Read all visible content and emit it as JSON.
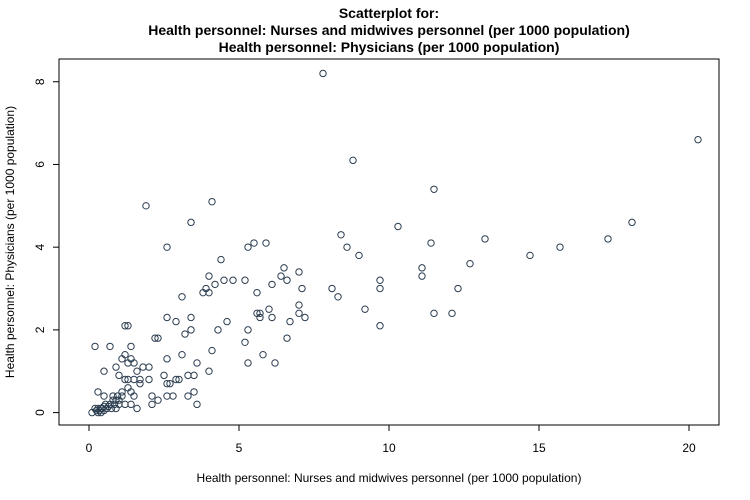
{
  "chart_data": {
    "type": "scatter",
    "title": "Scatterplot for:",
    "subtitle_lines": [
      "Health personnel: Nurses and midwives personnel (per 1000 population)",
      "Health personnel: Physicians (per 1000 population)"
    ],
    "xlabel": "Health personnel: Nurses and midwives personnel (per 1000 population)",
    "ylabel": "Health personnel: Physicians (per 1000 population)",
    "xlim": [
      -1,
      21
    ],
    "ylim": [
      -0.3,
      8.55
    ],
    "xticks": [
      0,
      5,
      10,
      15,
      20
    ],
    "yticks": [
      0,
      2,
      4,
      6,
      8
    ],
    "grid": false,
    "point_color": "#2c3e50",
    "points": [
      [
        0.1,
        0.0
      ],
      [
        0.2,
        0.1
      ],
      [
        0.25,
        0.05
      ],
      [
        0.3,
        0.0
      ],
      [
        0.3,
        0.1
      ],
      [
        0.35,
        0.05
      ],
      [
        0.4,
        0.1
      ],
      [
        0.4,
        0.0
      ],
      [
        0.45,
        0.1
      ],
      [
        0.5,
        0.15
      ],
      [
        0.5,
        0.05
      ],
      [
        0.55,
        0.2
      ],
      [
        0.6,
        0.1
      ],
      [
        0.65,
        0.15
      ],
      [
        0.7,
        0.2
      ],
      [
        0.75,
        0.1
      ],
      [
        0.8,
        0.3
      ],
      [
        0.85,
        0.2
      ],
      [
        0.9,
        0.1
      ],
      [
        0.95,
        0.4
      ],
      [
        1.0,
        0.2
      ],
      [
        1.0,
        0.3
      ],
      [
        0.5,
        0.4
      ],
      [
        0.3,
        0.5
      ],
      [
        0.8,
        0.4
      ],
      [
        0.9,
        0.3
      ],
      [
        1.1,
        0.5
      ],
      [
        0.2,
        1.6
      ],
      [
        0.5,
        1.0
      ],
      [
        0.7,
        1.6
      ],
      [
        0.9,
        1.1
      ],
      [
        1.0,
        0.9
      ],
      [
        1.1,
        1.3
      ],
      [
        1.2,
        1.4
      ],
      [
        1.2,
        2.1
      ],
      [
        1.3,
        2.1
      ],
      [
        1.3,
        1.2
      ],
      [
        1.4,
        1.6
      ],
      [
        1.4,
        1.3
      ],
      [
        1.5,
        1.2
      ],
      [
        1.6,
        1.0
      ],
      [
        1.7,
        0.8
      ],
      [
        1.7,
        0.7
      ],
      [
        1.8,
        1.1
      ],
      [
        1.3,
        0.8
      ],
      [
        1.2,
        0.2
      ],
      [
        1.4,
        0.2
      ],
      [
        1.5,
        0.4
      ],
      [
        1.6,
        0.1
      ],
      [
        1.4,
        0.5
      ],
      [
        1.5,
        0.8
      ],
      [
        1.1,
        0.4
      ],
      [
        1.2,
        0.8
      ],
      [
        1.3,
        0.6
      ],
      [
        1.9,
        5.0
      ],
      [
        2.0,
        1.1
      ],
      [
        2.0,
        0.8
      ],
      [
        2.1,
        0.4
      ],
      [
        2.1,
        0.2
      ],
      [
        2.2,
        1.8
      ],
      [
        2.3,
        1.8
      ],
      [
        2.3,
        0.3
      ],
      [
        2.5,
        0.9
      ],
      [
        2.6,
        0.7
      ],
      [
        2.6,
        0.4
      ],
      [
        2.6,
        1.3
      ],
      [
        2.6,
        2.3
      ],
      [
        2.6,
        4.0
      ],
      [
        2.7,
        0.7
      ],
      [
        2.8,
        0.4
      ],
      [
        2.9,
        2.2
      ],
      [
        2.9,
        0.8
      ],
      [
        3.0,
        0.8
      ],
      [
        3.1,
        2.8
      ],
      [
        3.2,
        1.9
      ],
      [
        3.1,
        1.4
      ],
      [
        3.3,
        0.4
      ],
      [
        3.3,
        0.9
      ],
      [
        3.4,
        2.0
      ],
      [
        3.4,
        4.6
      ],
      [
        3.4,
        2.3
      ],
      [
        3.5,
        0.9
      ],
      [
        3.5,
        0.5
      ],
      [
        3.6,
        0.2
      ],
      [
        3.6,
        1.2
      ],
      [
        3.8,
        2.9
      ],
      [
        3.9,
        3.0
      ],
      [
        4.0,
        1.0
      ],
      [
        4.0,
        2.9
      ],
      [
        4.0,
        3.3
      ],
      [
        4.1,
        5.1
      ],
      [
        4.1,
        1.5
      ],
      [
        4.2,
        3.1
      ],
      [
        4.3,
        2.0
      ],
      [
        4.4,
        3.7
      ],
      [
        4.5,
        3.2
      ],
      [
        4.6,
        2.2
      ],
      [
        4.8,
        3.2
      ],
      [
        5.2,
        1.7
      ],
      [
        5.2,
        3.2
      ],
      [
        5.3,
        2.0
      ],
      [
        5.3,
        1.2
      ],
      [
        5.3,
        4.0
      ],
      [
        5.5,
        4.1
      ],
      [
        5.6,
        2.9
      ],
      [
        5.6,
        2.4
      ],
      [
        5.7,
        2.4
      ],
      [
        5.7,
        2.3
      ],
      [
        5.8,
        1.4
      ],
      [
        5.9,
        4.1
      ],
      [
        6.0,
        2.5
      ],
      [
        6.1,
        3.1
      ],
      [
        6.1,
        2.3
      ],
      [
        6.2,
        1.2
      ],
      [
        6.4,
        3.3
      ],
      [
        6.5,
        3.5
      ],
      [
        6.6,
        3.2
      ],
      [
        6.6,
        1.8
      ],
      [
        6.7,
        2.2
      ],
      [
        7.0,
        3.4
      ],
      [
        7.0,
        2.6
      ],
      [
        7.0,
        2.4
      ],
      [
        7.1,
        3.0
      ],
      [
        7.2,
        2.3
      ],
      [
        7.8,
        8.2
      ],
      [
        8.1,
        3.0
      ],
      [
        8.3,
        2.8
      ],
      [
        8.4,
        4.3
      ],
      [
        8.6,
        4.0
      ],
      [
        8.8,
        6.1
      ],
      [
        9.0,
        3.8
      ],
      [
        9.2,
        2.5
      ],
      [
        9.7,
        3.2
      ],
      [
        9.7,
        3.0
      ],
      [
        9.7,
        2.1
      ],
      [
        10.3,
        4.5
      ],
      [
        11.1,
        3.5
      ],
      [
        11.1,
        3.3
      ],
      [
        11.4,
        4.1
      ],
      [
        11.5,
        5.4
      ],
      [
        11.5,
        2.4
      ],
      [
        12.1,
        2.4
      ],
      [
        12.3,
        3.0
      ],
      [
        12.7,
        3.6
      ],
      [
        13.2,
        4.2
      ],
      [
        14.7,
        3.8
      ],
      [
        15.7,
        4.0
      ],
      [
        17.3,
        4.2
      ],
      [
        18.1,
        4.6
      ],
      [
        20.3,
        6.6
      ]
    ]
  }
}
